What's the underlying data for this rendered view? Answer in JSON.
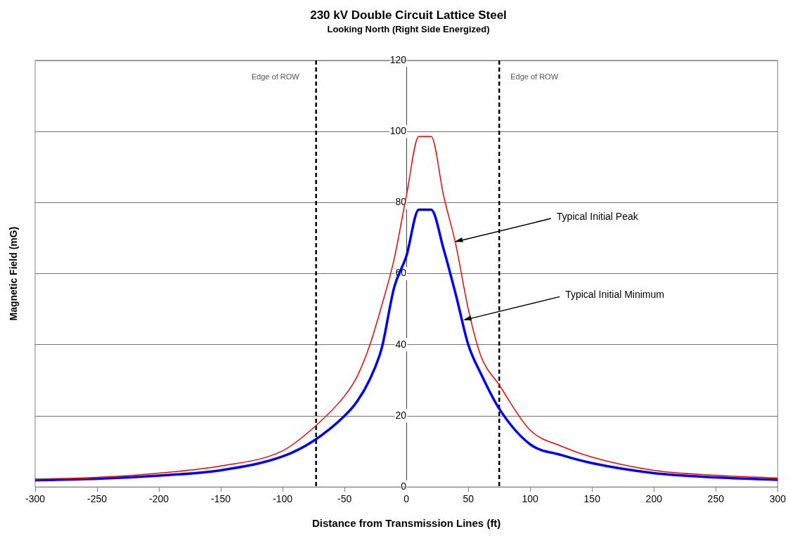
{
  "chart_data": {
    "type": "line",
    "title": "230 kV Double Circuit Lattice Steel",
    "subtitle": "Looking North (Right Side Energized)",
    "xlabel": "Distance from Transmission Lines (ft)",
    "ylabel": "Magnetic Field (mG)",
    "x": [
      -300,
      -250,
      -200,
      -150,
      -100,
      -75,
      -50,
      -40,
      -30,
      -20,
      -10,
      0,
      10,
      20,
      30,
      40,
      50,
      60,
      75,
      100,
      125,
      150,
      200,
      250,
      300
    ],
    "series": [
      {
        "color": "#ff0000",
        "values": [
          2.2,
          2.7,
          3.9,
          5.9,
          10.2,
          16.7,
          25.6,
          31,
          39.5,
          51,
          64,
          82,
          98.6,
          98.6,
          82,
          68,
          50,
          37,
          28.7,
          16,
          11.5,
          8.4,
          4.7,
          3.3,
          2.5
        ]
      },
      {
        "color": "#0000ff",
        "values": [
          1.9,
          2.3,
          3.2,
          4.7,
          8.6,
          13,
          20,
          24,
          30,
          39,
          56,
          65,
          78,
          78,
          67,
          54,
          40,
          32,
          22,
          12,
          9,
          6.7,
          3.9,
          2.7,
          2
        ]
      }
    ],
    "xlim": [
      -300,
      300
    ],
    "xticks": [
      -300,
      -250,
      -200,
      -150,
      -100,
      -50,
      0,
      50,
      100,
      150,
      200,
      250,
      300
    ],
    "ylim": [
      0,
      120
    ],
    "yticks": [
      0,
      20,
      40,
      60,
      80,
      100,
      120
    ],
    "grid": "y",
    "legend": false,
    "marker": "none",
    "line_style": "solid",
    "ref_lines": [
      {
        "axis": "x",
        "value": -73,
        "label": "Edge of ROW",
        "color": "#000000",
        "line_style": "dashed"
      },
      {
        "axis": "x",
        "value": 75,
        "label": "Edge of ROW",
        "color": "#000000",
        "line_style": "dashed"
      }
    ],
    "annotations": [
      {
        "text": "Typical Initial Peak",
        "x": 39,
        "y": 69
      },
      {
        "text": "Typical Initial Minimum",
        "x": 46,
        "y": 47
      }
    ]
  }
}
